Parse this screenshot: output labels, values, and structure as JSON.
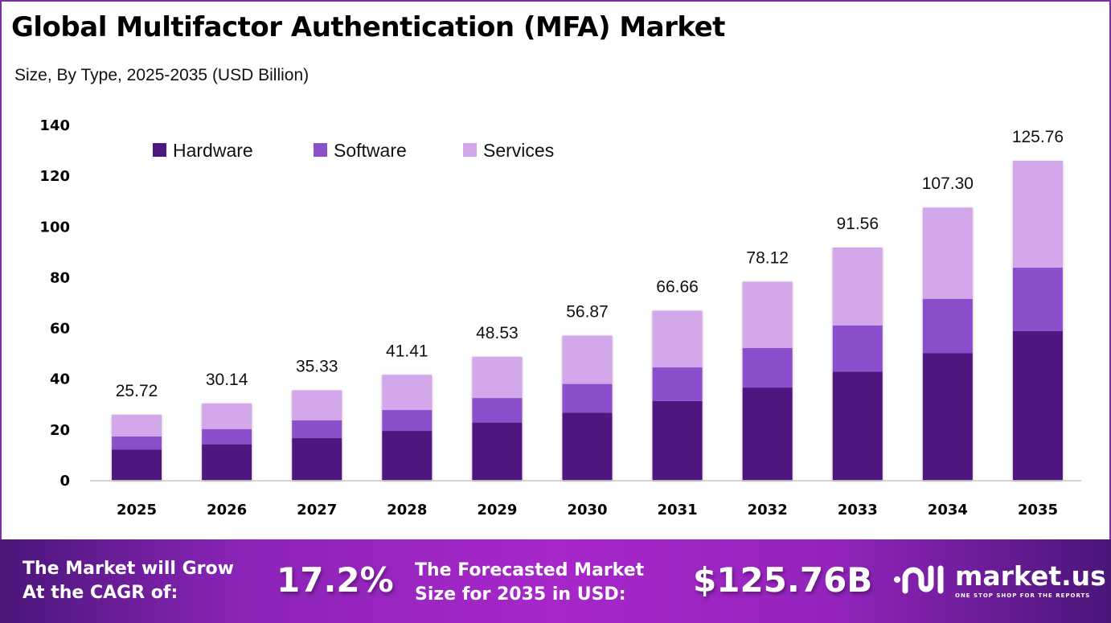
{
  "title": "Global Multifactor Authentication (MFA) Market",
  "subtitle": "Size, By Type, 2025-2035 (USD Billion)",
  "colors": {
    "hardware": "#4f1880",
    "software": "#8b50cc",
    "services": "#d3a8ea",
    "border": "#7b2ea6"
  },
  "chart_data": {
    "type": "bar",
    "stacked": true,
    "title": "Global Multifactor Authentication (MFA) Market",
    "subtitle": "Size, By Type, 2025-2035 (USD Billion)",
    "xlabel": "",
    "ylabel": "",
    "ylim": [
      0,
      140
    ],
    "yticks": [
      0,
      20,
      40,
      60,
      80,
      100,
      120,
      140
    ],
    "grid": false,
    "legend_position": "top-left",
    "categories": [
      "2025",
      "2026",
      "2027",
      "2028",
      "2029",
      "2030",
      "2031",
      "2032",
      "2033",
      "2034",
      "2035"
    ],
    "series": [
      {
        "name": "Hardware",
        "values": [
          11.99,
          14.05,
          16.46,
          19.3,
          22.61,
          26.5,
          31.06,
          36.4,
          42.67,
          50.0,
          58.6
        ]
      },
      {
        "name": "Software",
        "values": [
          5.12,
          6.0,
          7.03,
          8.24,
          9.66,
          11.32,
          13.27,
          15.55,
          18.22,
          21.35,
          25.03
        ]
      },
      {
        "name": "Services",
        "values": [
          8.61,
          10.09,
          11.84,
          13.87,
          16.26,
          19.05,
          22.33,
          26.17,
          30.67,
          35.95,
          42.13
        ]
      }
    ],
    "totals": [
      25.72,
      30.14,
      35.33,
      41.41,
      48.53,
      56.87,
      66.66,
      78.12,
      91.56,
      107.3,
      125.76
    ],
    "total_labels": [
      "25.72",
      "30.14",
      "35.33",
      "41.41",
      "48.53",
      "56.87",
      "66.66",
      "78.12",
      "91.56",
      "107.30",
      "125.76"
    ]
  },
  "banner": {
    "cagr_text_line1": "The Market will Grow",
    "cagr_text_line2": "At the CAGR of:",
    "cagr_value": "17.2%",
    "forecast_text_line1": "The Forecasted Market",
    "forecast_text_line2": "Size for 2035 in USD:",
    "forecast_value": "$125.76B",
    "logo_name": "market.us",
    "logo_tagline": "ONE STOP SHOP FOR THE REPORTS"
  }
}
